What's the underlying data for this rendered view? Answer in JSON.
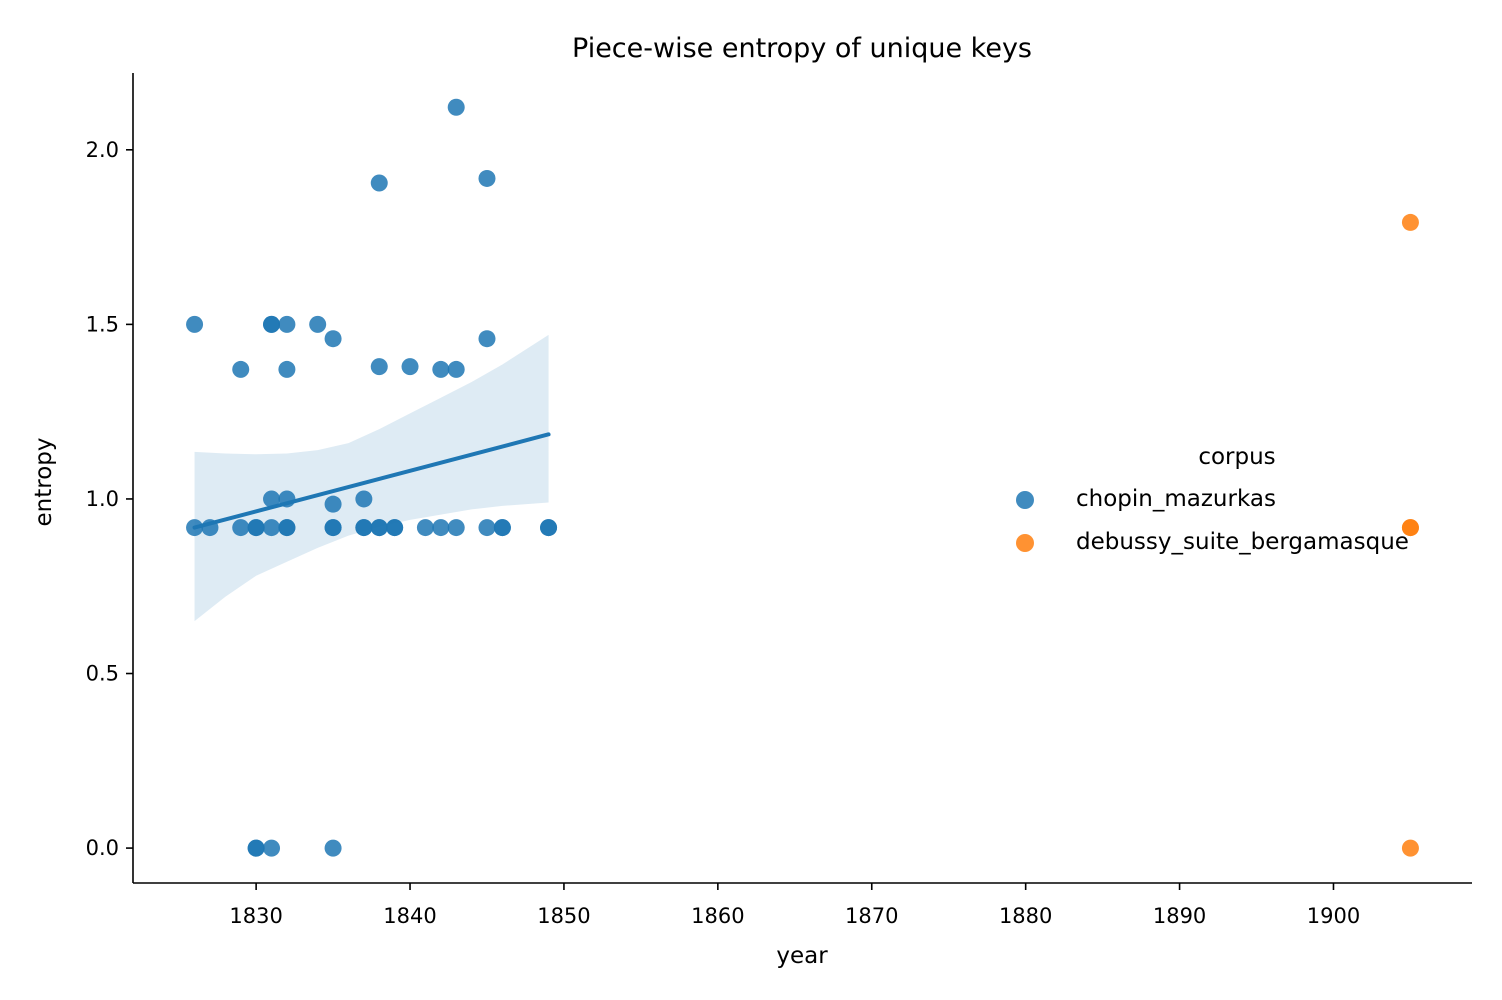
{
  "chart_data": {
    "type": "scatter",
    "title": "Piece-wise entropy of unique keys",
    "xlabel": "year",
    "ylabel": "entropy",
    "xlim": [
      1822,
      1909
    ],
    "ylim": [
      -0.1,
      2.22
    ],
    "xticks": [
      1830,
      1840,
      1850,
      1860,
      1870,
      1880,
      1890,
      1900
    ],
    "yticks": [
      0.0,
      0.5,
      1.0,
      1.5,
      2.0
    ],
    "ytick_labels": [
      "0.0",
      "0.5",
      "1.0",
      "1.5",
      "2.0"
    ],
    "grid": false,
    "legend": {
      "title": "corpus",
      "placement": "right"
    },
    "series": [
      {
        "name": "chopin_mazurkas",
        "color": "#1f77b4",
        "points": [
          [
            1826,
            1.5
          ],
          [
            1826,
            0.918
          ],
          [
            1827,
            0.918
          ],
          [
            1829,
            1.371
          ],
          [
            1829,
            0.918
          ],
          [
            1830,
            0.918
          ],
          [
            1830,
            0.918
          ],
          [
            1830,
            0.0
          ],
          [
            1830,
            0.0
          ],
          [
            1831,
            1.5
          ],
          [
            1831,
            1.5
          ],
          [
            1831,
            1.0
          ],
          [
            1831,
            0.918
          ],
          [
            1831,
            0.0
          ],
          [
            1832,
            1.5
          ],
          [
            1832,
            1.371
          ],
          [
            1832,
            1.0
          ],
          [
            1832,
            0.918
          ],
          [
            1832,
            0.918
          ],
          [
            1834,
            1.5
          ],
          [
            1835,
            1.459
          ],
          [
            1835,
            0.985
          ],
          [
            1835,
            0.918
          ],
          [
            1835,
            0.918
          ],
          [
            1835,
            0.0
          ],
          [
            1837,
            1.0
          ],
          [
            1837,
            0.918
          ],
          [
            1837,
            0.918
          ],
          [
            1838,
            1.905
          ],
          [
            1838,
            1.379
          ],
          [
            1838,
            0.918
          ],
          [
            1838,
            0.918
          ],
          [
            1839,
            0.918
          ],
          [
            1839,
            0.918
          ],
          [
            1840,
            1.379
          ],
          [
            1841,
            0.918
          ],
          [
            1842,
            1.371
          ],
          [
            1842,
            0.918
          ],
          [
            1843,
            2.122
          ],
          [
            1843,
            1.371
          ],
          [
            1843,
            0.918
          ],
          [
            1845,
            1.918
          ],
          [
            1845,
            1.459
          ],
          [
            1845,
            0.918
          ],
          [
            1846,
            0.918
          ],
          [
            1846,
            0.918
          ],
          [
            1849,
            0.918
          ],
          [
            1849,
            0.918
          ]
        ],
        "regression": {
          "x": [
            1826,
            1849
          ],
          "y": [
            0.918,
            1.185
          ]
        },
        "confidence_band": {
          "x": [
            1826,
            1828,
            1830,
            1832,
            1834,
            1836,
            1838,
            1840,
            1842,
            1844,
            1846,
            1849
          ],
          "upper": [
            1.135,
            1.13,
            1.128,
            1.13,
            1.14,
            1.16,
            1.2,
            1.245,
            1.29,
            1.335,
            1.385,
            1.47
          ],
          "lower": [
            0.65,
            0.72,
            0.78,
            0.82,
            0.86,
            0.895,
            0.92,
            0.94,
            0.955,
            0.97,
            0.98,
            0.99
          ]
        }
      },
      {
        "name": "debussy_suite_bergamasque",
        "color": "#ff7f0e",
        "points": [
          [
            1905,
            1.792
          ],
          [
            1905,
            0.918
          ],
          [
            1905,
            0.918
          ],
          [
            1905,
            0.0
          ]
        ]
      }
    ]
  }
}
